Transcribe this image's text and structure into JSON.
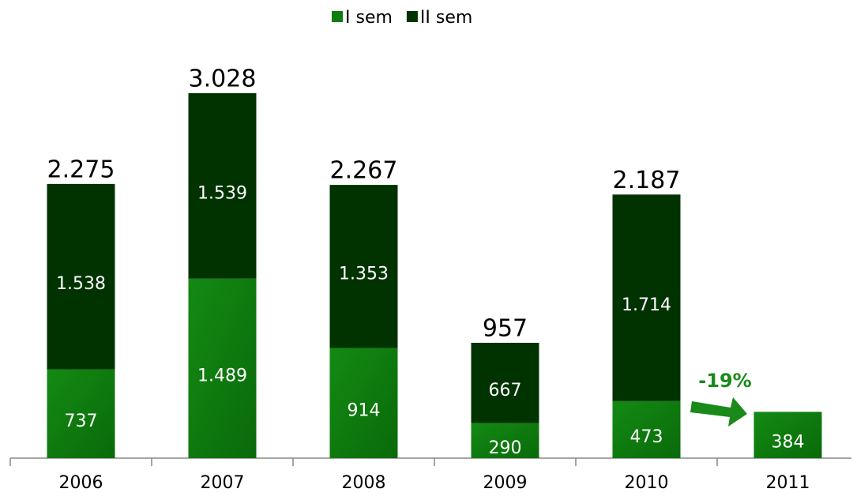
{
  "chart_data": {
    "type": "stacked_bar",
    "categories": [
      "2006",
      "2007",
      "2008",
      "2009",
      "2010",
      "2011"
    ],
    "series": [
      {
        "name": "I sem",
        "color": "#0e7d0e",
        "values": [
          737,
          1489,
          914,
          290,
          473,
          384
        ],
        "value_labels": [
          "737",
          "1.489",
          "914",
          "290",
          "473",
          "384"
        ]
      },
      {
        "name": "II sem",
        "color": "#003300",
        "values": [
          1538,
          1539,
          1353,
          667,
          1714,
          null
        ],
        "value_labels": [
          "1.538",
          "1.539",
          "1.353",
          "667",
          "1.714",
          null
        ]
      }
    ],
    "totals": {
      "values": [
        2275,
        3028,
        2267,
        957,
        2187,
        null
      ],
      "value_labels": [
        "2.275",
        "3.028",
        "2.267",
        "957",
        "2.187",
        null
      ]
    },
    "annotation": "-19%",
    "ylim": [
      0,
      3600
    ],
    "legend": "top"
  }
}
